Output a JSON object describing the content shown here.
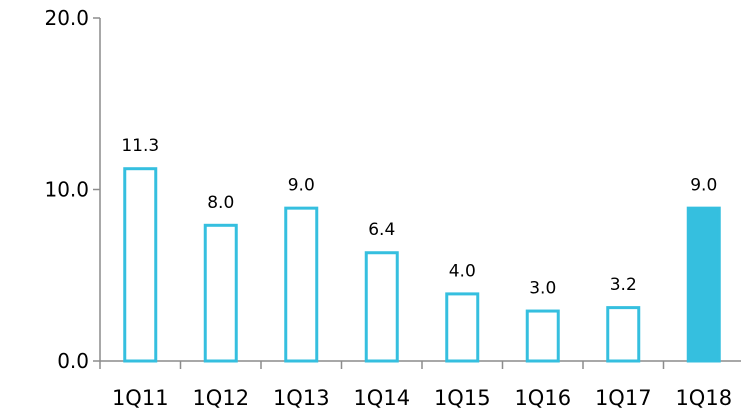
{
  "chart_data": {
    "type": "bar",
    "categories": [
      "1Q11",
      "1Q12",
      "1Q13",
      "1Q14",
      "1Q15",
      "1Q16",
      "1Q17",
      "1Q18"
    ],
    "values": [
      11.3,
      8.0,
      9.0,
      6.4,
      4.0,
      3.0,
      3.2,
      9.0
    ],
    "data_labels": [
      "11.3",
      "8.0",
      "9.0",
      "6.4",
      "4.0",
      "3.0",
      "3.2",
      "9.0"
    ],
    "yticks": [
      0,
      10,
      20
    ],
    "ytick_labels": [
      "0.0",
      "10.0",
      "20.0"
    ],
    "ylim": [
      0,
      20
    ],
    "title": "",
    "xlabel": "",
    "ylabel": "",
    "grid": false,
    "legend": "none",
    "colors": {
      "bar_outline": "#35BFDF",
      "bar_fill": "#FFFFFF",
      "highlight_fill": "#35BFDF",
      "axis": "#8C8C8C"
    },
    "highlight_category": "1Q18"
  }
}
